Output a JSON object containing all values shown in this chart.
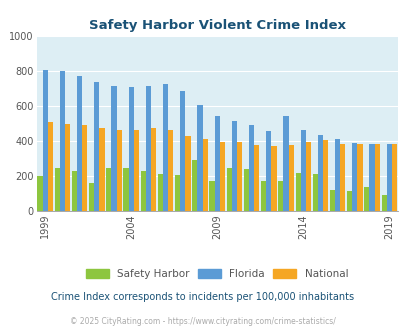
{
  "title": "Safety Harbor Violent Crime Index",
  "subtitle": "Crime Index corresponds to incidents per 100,000 inhabitants",
  "footer": "© 2025 CityRating.com - https://www.cityrating.com/crime-statistics/",
  "years": [
    1999,
    2000,
    2001,
    2002,
    2003,
    2004,
    2005,
    2006,
    2007,
    2008,
    2009,
    2010,
    2011,
    2012,
    2013,
    2014,
    2015,
    2016,
    2017,
    2018,
    2019
  ],
  "safety_harbor": [
    200,
    245,
    230,
    160,
    245,
    245,
    230,
    210,
    205,
    290,
    170,
    245,
    240,
    170,
    175,
    220,
    215,
    120,
    115,
    140,
    95
  ],
  "florida": [
    810,
    800,
    775,
    740,
    715,
    710,
    715,
    725,
    690,
    610,
    545,
    515,
    490,
    460,
    545,
    465,
    435,
    410,
    390,
    385,
    385
  ],
  "national": [
    510,
    500,
    495,
    475,
    465,
    465,
    475,
    465,
    430,
    410,
    395,
    395,
    380,
    375,
    380,
    395,
    405,
    385,
    385,
    385,
    385
  ],
  "bar_width": 0.3,
  "colors": {
    "safety_harbor": "#8dc63f",
    "florida": "#5b9bd5",
    "national": "#f5a623"
  },
  "ylim": [
    0,
    1000
  ],
  "yticks": [
    0,
    200,
    400,
    600,
    800,
    1000
  ],
  "background_color": "#ddeef4",
  "title_color": "#1a5276",
  "subtitle_color": "#1a5276",
  "footer_color": "#aaaaaa",
  "tick_label_color": "#555555",
  "xlabel_years": [
    1999,
    2004,
    2009,
    2014,
    2019
  ]
}
